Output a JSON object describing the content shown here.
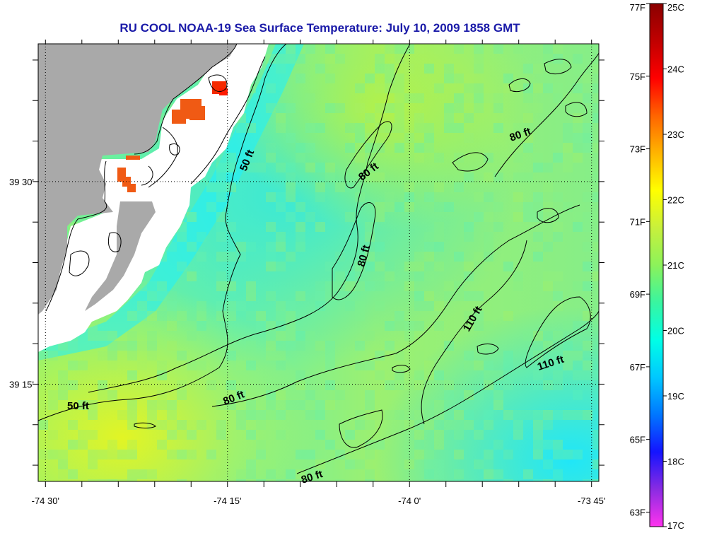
{
  "title": "RU COOL  NOAA-19  Sea Surface Temperature:  July 10, 2009 1858 GMT",
  "map": {
    "lon_ticks": [
      {
        "value": -74.5,
        "label": "-74 30'"
      },
      {
        "value": -74.25,
        "label": "-74 15'"
      },
      {
        "value": -74.0,
        "label": "-74 0'"
      },
      {
        "value": -73.75,
        "label": "-73 45'"
      }
    ],
    "lat_ticks": [
      {
        "value": 39.5,
        "label": "39 30'"
      },
      {
        "value": 39.25,
        "label": "39 15'"
      }
    ],
    "lon_range": [
      -74.51,
      -73.74
    ],
    "lat_range": [
      39.13,
      39.67
    ],
    "grid": true,
    "contour_labels": [
      {
        "text": "50 ft",
        "rotate": -68
      },
      {
        "text": "80 ft",
        "rotate": -38
      },
      {
        "text": "80 ft",
        "rotate": -20
      },
      {
        "text": "80 ft",
        "rotate": -75
      },
      {
        "text": "110 ft",
        "rotate": -60
      },
      {
        "text": "110 ft",
        "rotate": -18
      },
      {
        "text": "50 ft",
        "rotate": 0
      },
      {
        "text": "80 ft",
        "rotate": -22
      },
      {
        "text": "80 ft",
        "rotate": -18
      }
    ],
    "colors": {
      "land": "#a9a9a9",
      "cloud": "#ffffff",
      "warm_patch": "#f05a14"
    }
  },
  "colorbar": {
    "fahrenheit_labels": [
      "77F",
      "75F",
      "73F",
      "71F",
      "69F",
      "67F",
      "65F",
      "63F"
    ],
    "celsius_labels": [
      "25C",
      "24C",
      "23C",
      "22C",
      "21C",
      "20C",
      "19C",
      "18C",
      "17C"
    ],
    "range_c": [
      17,
      25
    ],
    "gradient": [
      "#ff33ee",
      "#8a2be2",
      "#1414ff",
      "#0077ff",
      "#00c8ff",
      "#00ffe6",
      "#39f5a0",
      "#8cf25a",
      "#c8f03c",
      "#ffff00",
      "#ffb400",
      "#ff6400",
      "#ff0000",
      "#c00000",
      "#8a0000"
    ]
  }
}
